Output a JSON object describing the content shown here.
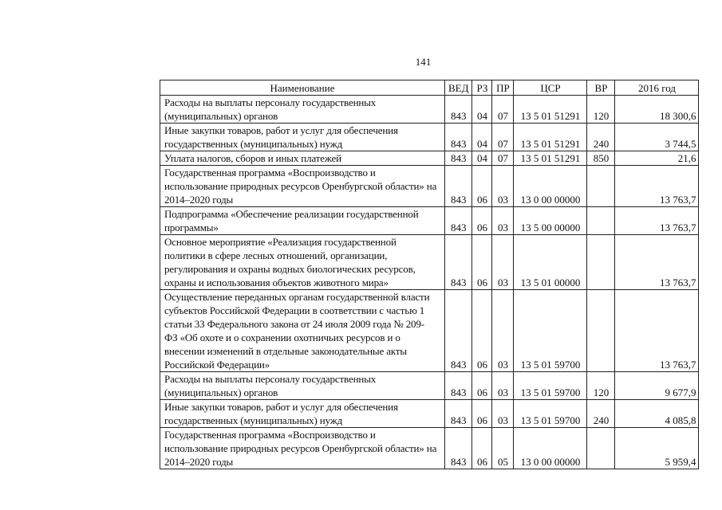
{
  "page_number": "141",
  "table": {
    "headers": [
      "Наименование",
      "ВЕД",
      "РЗ",
      "ПР",
      "ЦСР",
      "ВР",
      "2016 год"
    ],
    "rows": [
      {
        "name": [
          "Расходы на выплаты персоналу государственных",
          "(муниципальных) органов"
        ],
        "ved": "843",
        "rz": "04",
        "pr": "07",
        "csr": "13 5 01 51291",
        "vr": "120",
        "value": "18 300,6"
      },
      {
        "name": [
          "Иные закупки товаров, работ и услуг для обеспечения",
          "государственных (муниципальных) нужд"
        ],
        "ved": "843",
        "rz": "04",
        "pr": "07",
        "csr": "13 5 01 51291",
        "vr": "240",
        "value": "3 744,5"
      },
      {
        "name": [
          "Уплата налогов, сборов и иных платежей"
        ],
        "ved": "843",
        "rz": "04",
        "pr": "07",
        "csr": "13 5 01 51291",
        "vr": "850",
        "value": "21,6"
      },
      {
        "name": [
          "Государственная программа «Воспроизводство и",
          "использование природных ресурсов Оренбургской области» на",
          "2014–2020 годы"
        ],
        "ved": "843",
        "rz": "06",
        "pr": "03",
        "csr": "13 0 00 00000",
        "vr": "",
        "value": "13 763,7"
      },
      {
        "name": [
          "Подпрограмма «Обеспечение реализации государственной",
          "программы»"
        ],
        "ved": "843",
        "rz": "06",
        "pr": "03",
        "csr": "13 5 00 00000",
        "vr": "",
        "value": "13 763,7"
      },
      {
        "name": [
          "Основное мероприятие «Реализация государственной",
          "политики в сфере лесных отношений, организации,",
          "регулирования и охраны водных биологических ресурсов,",
          "охраны и использования объектов животного мира»"
        ],
        "ved": "843",
        "rz": "06",
        "pr": "03",
        "csr": "13 5 01 00000",
        "vr": "",
        "value": "13 763,7"
      },
      {
        "name": [
          "Осуществление переданных органам государственной власти",
          "субъектов Российской Федерации в соответствии с частью 1",
          "статьи 33 Федерального закона от 24 июля 2009 года № 209-",
          "ФЗ «Об охоте и о сохранении охотничьих ресурсов и о",
          "внесении изменений в отдельные законодательные акты",
          "Российской Федерации»"
        ],
        "ved": "843",
        "rz": "06",
        "pr": "03",
        "csr": "13 5 01 59700",
        "vr": "",
        "value": "13 763,7"
      },
      {
        "name": [
          "Расходы на выплаты персоналу государственных",
          "(муниципальных) органов"
        ],
        "ved": "843",
        "rz": "06",
        "pr": "03",
        "csr": "13 5 01 59700",
        "vr": "120",
        "value": "9 677,9"
      },
      {
        "name": [
          "Иные закупки товаров, работ и услуг для обеспечения",
          "государственных (муниципальных) нужд"
        ],
        "ved": "843",
        "rz": "06",
        "pr": "03",
        "csr": "13 5 01 59700",
        "vr": "240",
        "value": "4 085,8"
      },
      {
        "name": [
          "Государственная программа «Воспроизводство и",
          "использование природных ресурсов Оренбургской области» на",
          "2014–2020 годы"
        ],
        "ved": "843",
        "rz": "06",
        "pr": "05",
        "csr": "13 0 00 00000",
        "vr": "",
        "value": "5 959,4"
      }
    ]
  }
}
